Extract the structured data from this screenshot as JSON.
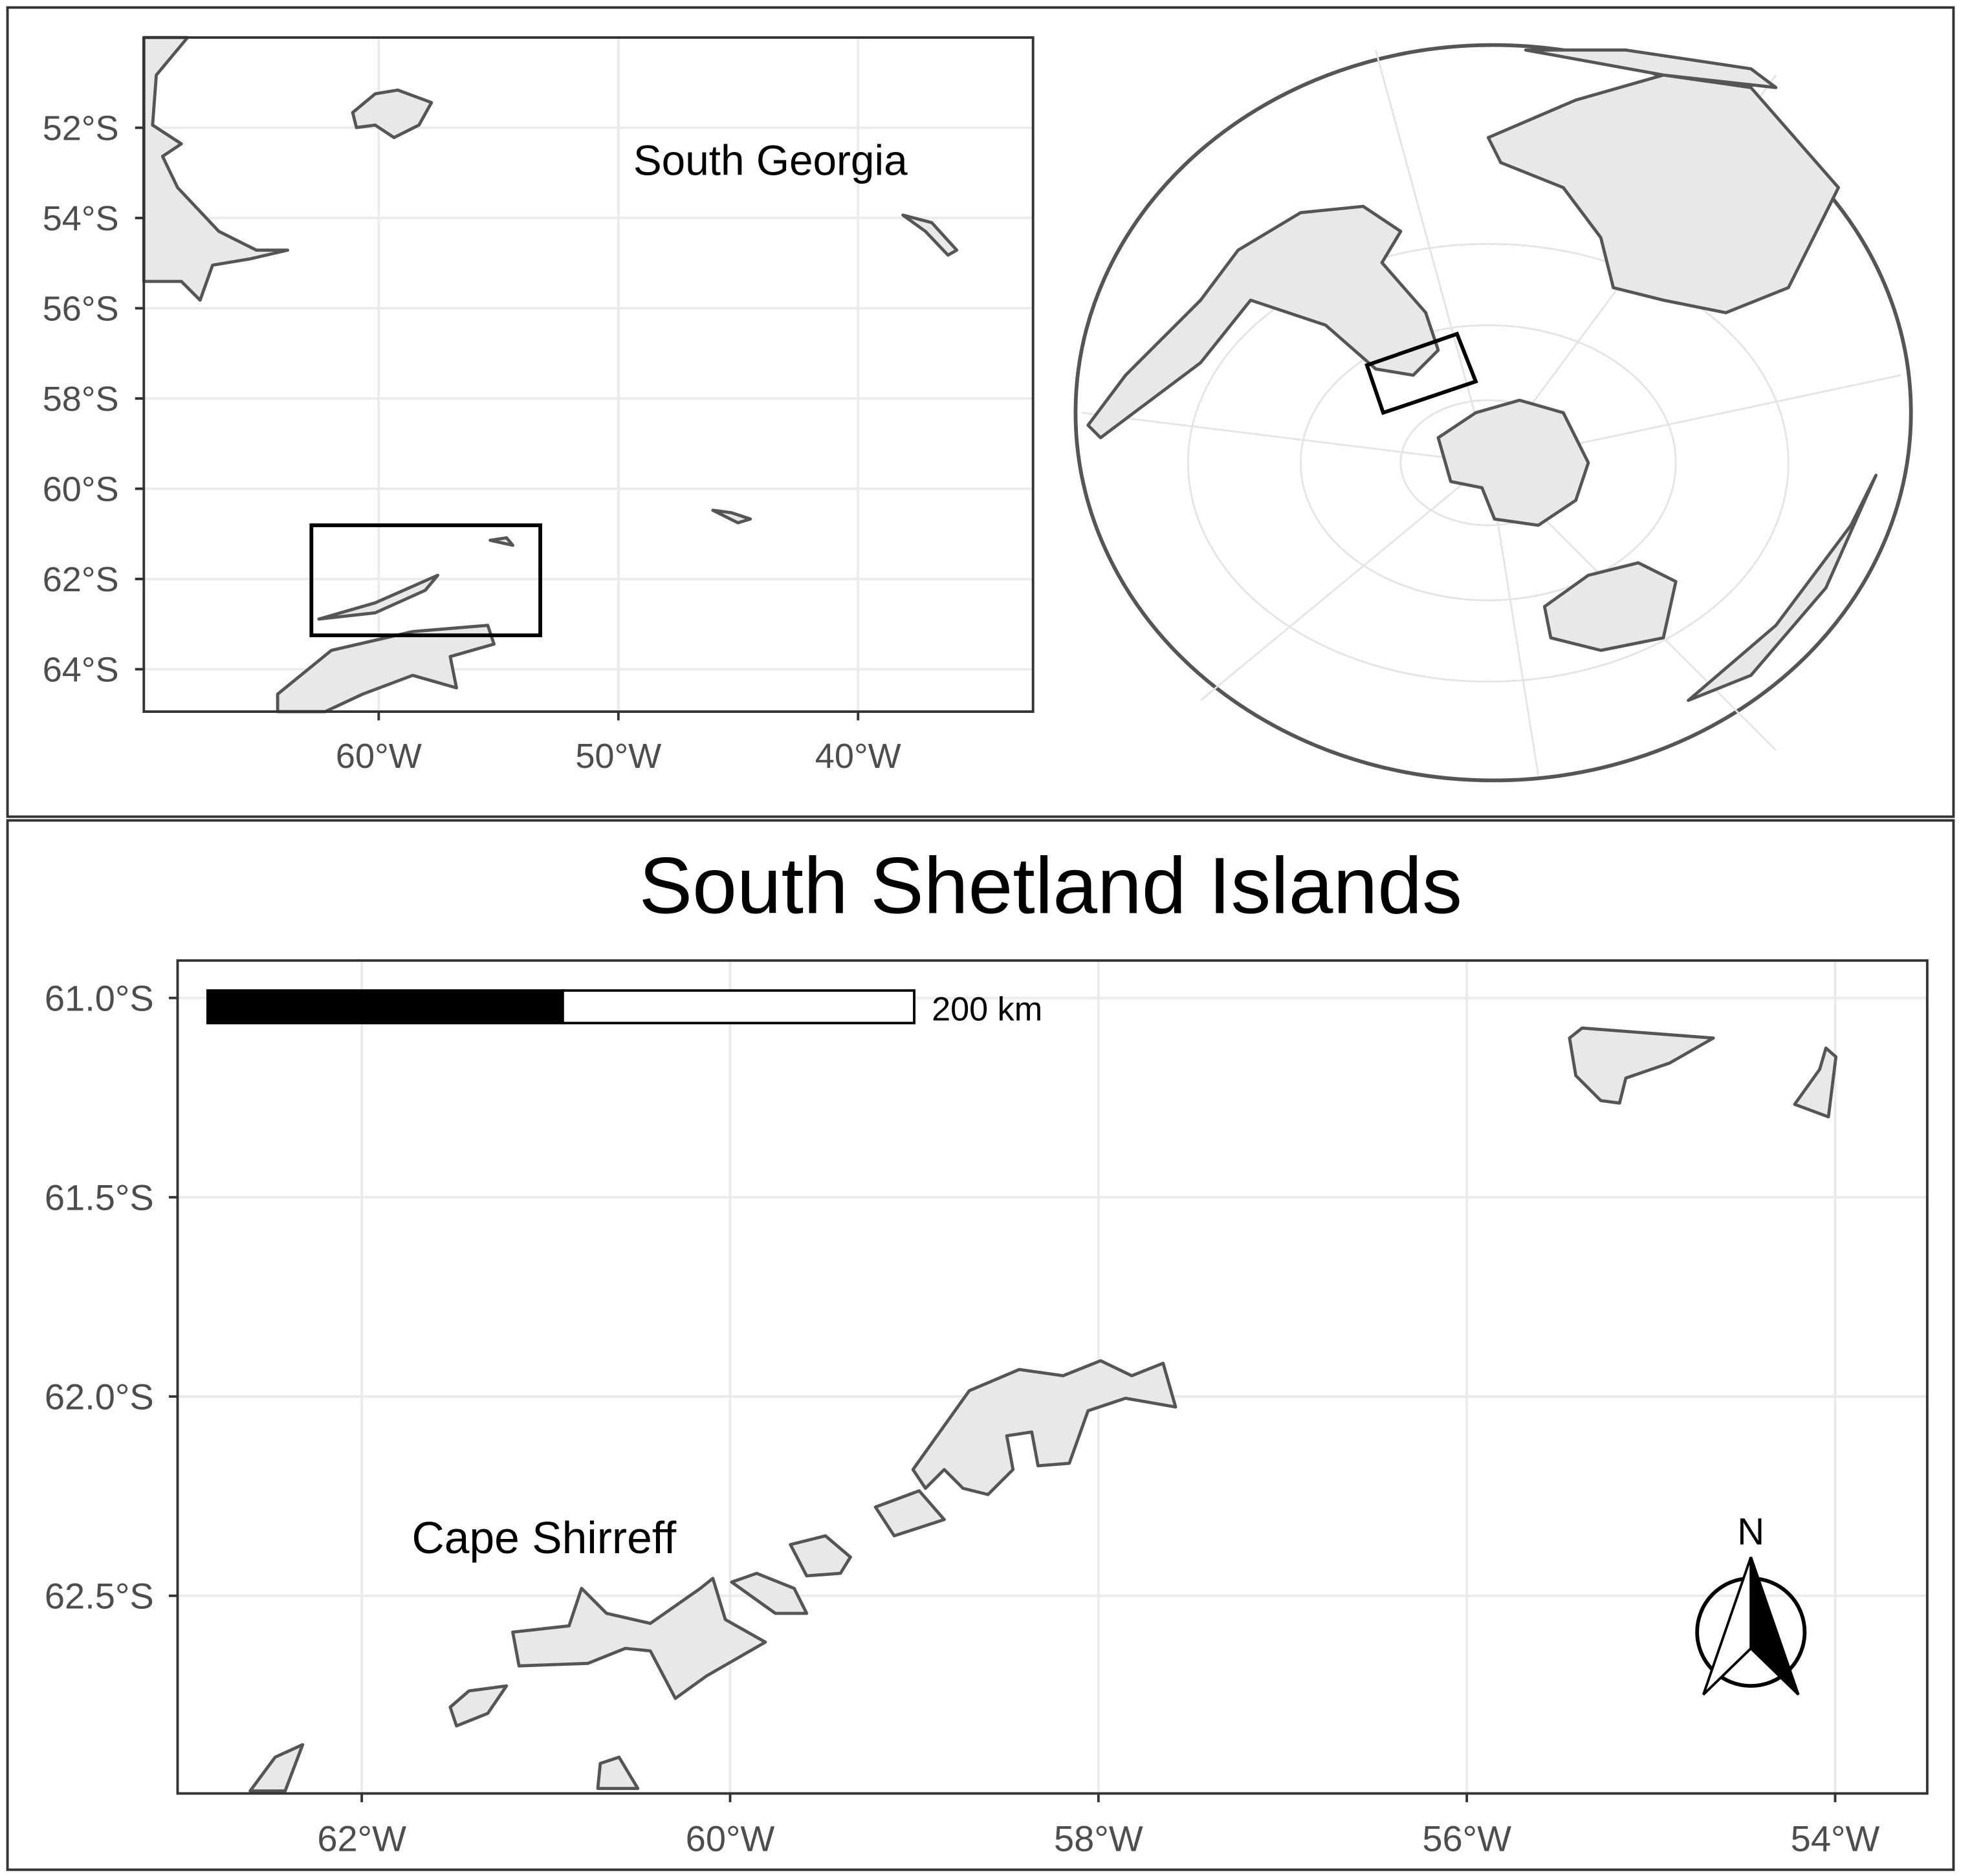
{
  "overview_map": {
    "label": "South Georgia",
    "xlim": [
      -69.8,
      -32.7
    ],
    "ylim": [
      -64.94,
      -50.0
    ],
    "xticks": [
      {
        "value": -60,
        "label": "60°W"
      },
      {
        "value": -50,
        "label": "50°W"
      },
      {
        "value": -40,
        "label": "40°W"
      }
    ],
    "yticks": [
      {
        "value": -52,
        "label": "52°S"
      },
      {
        "value": -54,
        "label": "54°S"
      },
      {
        "value": -56,
        "label": "56°S"
      },
      {
        "value": -58,
        "label": "58°S"
      },
      {
        "value": -60,
        "label": "60°S"
      },
      {
        "value": -62,
        "label": "62°S"
      },
      {
        "value": -64,
        "label": "64°S"
      }
    ]
  },
  "detail_map": {
    "title": "South Shetland Islands",
    "scale_bar_label": "200 km",
    "site_label": "Cape Shirreff",
    "north_label": "N",
    "xlim": [
      -63.0,
      -53.5
    ],
    "ylim": [
      -62.996,
      -60.906
    ],
    "xticks": [
      {
        "value": -62,
        "label": "62°W"
      },
      {
        "value": -60,
        "label": "60°W"
      },
      {
        "value": -58,
        "label": "58°W"
      },
      {
        "value": -56,
        "label": "56°W"
      },
      {
        "value": -54,
        "label": "54°W"
      }
    ],
    "yticks": [
      {
        "value": -61.0,
        "label": "61.0°S"
      },
      {
        "value": -61.5,
        "label": "61.5°S"
      },
      {
        "value": -62.0,
        "label": "62.0°S"
      },
      {
        "value": -62.5,
        "label": "62.5°S"
      }
    ]
  }
}
